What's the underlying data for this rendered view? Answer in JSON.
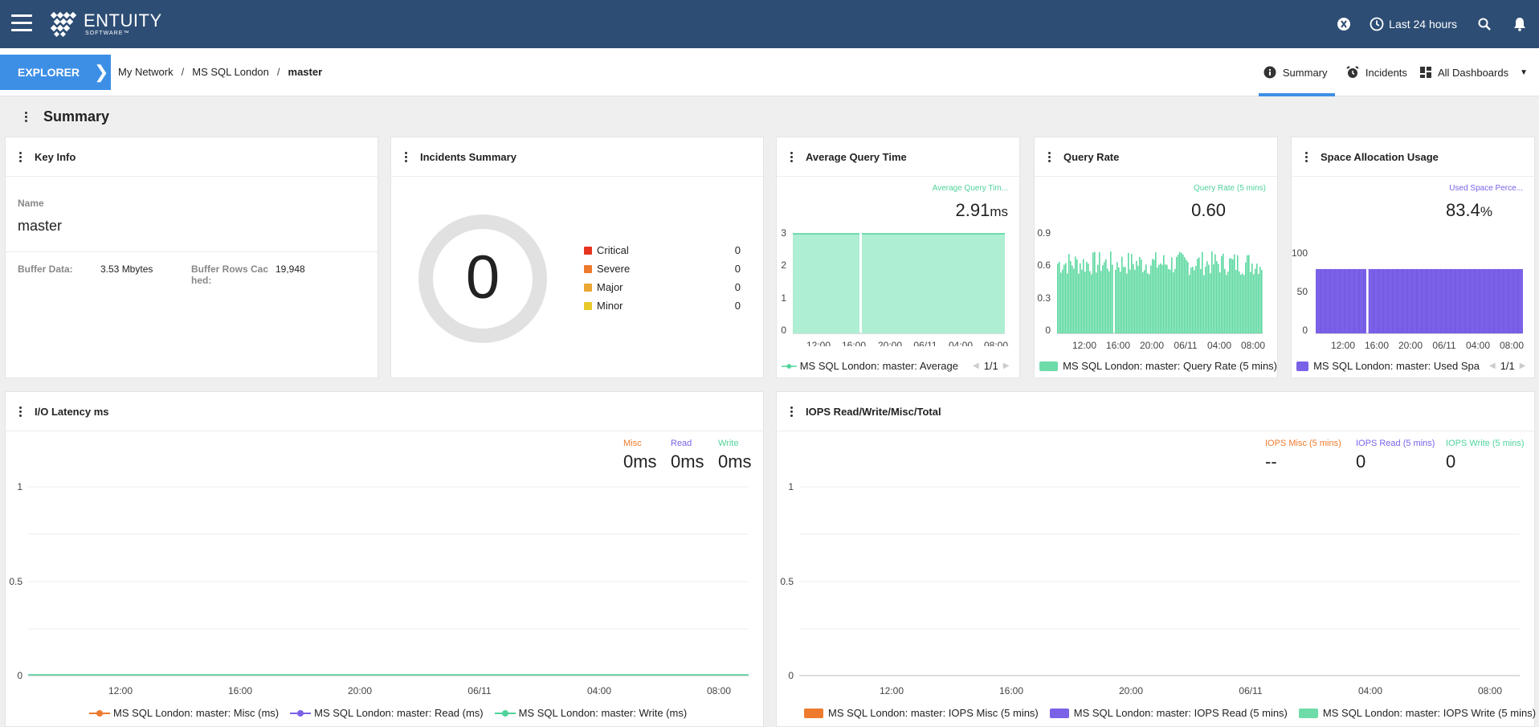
{
  "app": {
    "brand_name": "ENTUITY",
    "brand_sub": "SOFTWARE™"
  },
  "header": {
    "time_range_label": "Last 24 hours"
  },
  "nav": {
    "explorer_label": "EXPLORER",
    "breadcrumb": [
      "My Network",
      "MS SQL London",
      "master"
    ],
    "tabs": {
      "summary": "Summary",
      "incidents": "Incidents",
      "dashboards": "All Dashboards"
    }
  },
  "page": {
    "title": "Summary"
  },
  "key_info": {
    "title": "Key Info",
    "name_label": "Name",
    "name_value": "master",
    "buffer_data_label": "Buffer Data:",
    "buffer_data_value": "3.53 Mbytes",
    "buffer_rows_label_1": "Buffer Rows Cac",
    "buffer_rows_label_2": "hed:",
    "buffer_rows_value": "19,948"
  },
  "incidents": {
    "title": "Incidents Summary",
    "total": "0",
    "rows": [
      {
        "label": "Critical",
        "count": "0",
        "color": "#e6341f"
      },
      {
        "label": "Severe",
        "count": "0",
        "color": "#ee7a2d"
      },
      {
        "label": "Major",
        "count": "0",
        "color": "#eba634"
      },
      {
        "label": "Minor",
        "count": "0",
        "color": "#e8c92a"
      }
    ]
  },
  "avg_query": {
    "title": "Average Query Time",
    "series_label": "Average Query Tim...",
    "value": "2.91",
    "unit": "ms",
    "legend": "MS SQL London: master: Average",
    "pager": "1/1",
    "y_ticks": [
      "3",
      "2",
      "1",
      "0"
    ],
    "x_ticks": [
      "12:00",
      "16:00",
      "20:00",
      "06/11",
      "04:00",
      "08:00"
    ]
  },
  "query_rate": {
    "title": "Query Rate",
    "series_label": "Query Rate (5 mins)",
    "value": "0.60",
    "legend": "MS SQL London: master: Query Rate (5 mins)",
    "y_ticks": [
      "0.9",
      "0.6",
      "0.3",
      "0"
    ],
    "x_ticks": [
      "12:00",
      "16:00",
      "20:00",
      "06/11",
      "04:00",
      "08:00"
    ]
  },
  "space_alloc": {
    "title": "Space Allocation Usage",
    "series_label": "Used Space Perce...",
    "value": "83.4",
    "unit": "%",
    "legend": "MS SQL London: master: Used Spa",
    "pager": "1/1",
    "y_ticks": [
      "100",
      "50",
      "0"
    ],
    "x_ticks": [
      "12:00",
      "16:00",
      "20:00",
      "06/11",
      "04:00",
      "08:00"
    ]
  },
  "io_latency": {
    "title": "I/O Latency ms",
    "stats": [
      {
        "label": "Misc",
        "value": "0ms",
        "color": "#ee7a2d"
      },
      {
        "label": "Read",
        "value": "0ms",
        "color": "#7b61e8"
      },
      {
        "label": "Write",
        "value": "0ms",
        "color": "#4fd39a"
      }
    ],
    "legend": [
      {
        "label": "MS SQL London: master: Misc (ms)",
        "color": "#ee7a2d"
      },
      {
        "label": "MS SQL London: master: Read (ms)",
        "color": "#7b61e8"
      },
      {
        "label": "MS SQL London: master: Write (ms)",
        "color": "#4fd39a"
      }
    ],
    "y_ticks": [
      "1",
      "0.5",
      "0"
    ],
    "x_ticks": [
      "12:00",
      "16:00",
      "20:00",
      "06/11",
      "04:00",
      "08:00"
    ]
  },
  "iops": {
    "title": "IOPS Read/Write/Misc/Total",
    "stats": [
      {
        "label": "IOPS Misc (5 mins)",
        "value": "--",
        "color": "#ee7a2d"
      },
      {
        "label": "IOPS Read (5 mins)",
        "value": "0",
        "color": "#7b61e8"
      },
      {
        "label": "IOPS Write (5 mins)",
        "value": "0",
        "color": "#4fd39a"
      }
    ],
    "legend": [
      {
        "label": "MS SQL London: master: IOPS Misc (5 mins)",
        "color": "#ee7a2d"
      },
      {
        "label": "MS SQL London: master: IOPS Read (5 mins)",
        "color": "#7b61e8"
      },
      {
        "label": "MS SQL London: master: IOPS Write (5 mins)",
        "color": "#4fd39a"
      }
    ],
    "y_ticks": [
      "1",
      "0.5",
      "0"
    ],
    "x_ticks": [
      "12:00",
      "16:00",
      "20:00",
      "06/11",
      "04:00",
      "08:00"
    ]
  },
  "chart_data": [
    {
      "type": "area",
      "title": "Average Query Time",
      "ylim": [
        0,
        3
      ],
      "series": [
        {
          "name": "MS SQL London: master: Average",
          "values": [
            2.91
          ]
        }
      ]
    },
    {
      "type": "bar",
      "title": "Query Rate",
      "ylim": [
        0,
        0.9
      ],
      "series": [
        {
          "name": "MS SQL London: master: Query Rate (5 mins)",
          "values": [
            0.6
          ]
        }
      ]
    },
    {
      "type": "bar",
      "title": "Space Allocation Usage",
      "ylim": [
        0,
        100
      ],
      "series": [
        {
          "name": "MS SQL London: master: Used Spa",
          "values": [
            83.4
          ]
        }
      ]
    },
    {
      "type": "line",
      "title": "I/O Latency ms",
      "ylim": [
        0,
        1
      ],
      "series": [
        {
          "name": "MS SQL London: master: Misc (ms)",
          "values": [
            0
          ]
        },
        {
          "name": "MS SQL London: master: Read (ms)",
          "values": [
            0
          ]
        },
        {
          "name": "MS SQL London: master: Write (ms)",
          "values": [
            0
          ]
        }
      ]
    },
    {
      "type": "bar",
      "title": "IOPS Read/Write/Misc/Total",
      "ylim": [
        0,
        1
      ],
      "series": [
        {
          "name": "MS SQL London: master: IOPS Misc (5 mins)",
          "values": []
        },
        {
          "name": "MS SQL London: master: IOPS Read (5 mins)",
          "values": [
            0
          ]
        },
        {
          "name": "MS SQL London: master: IOPS Write (5 mins)",
          "values": [
            0
          ]
        }
      ]
    }
  ]
}
